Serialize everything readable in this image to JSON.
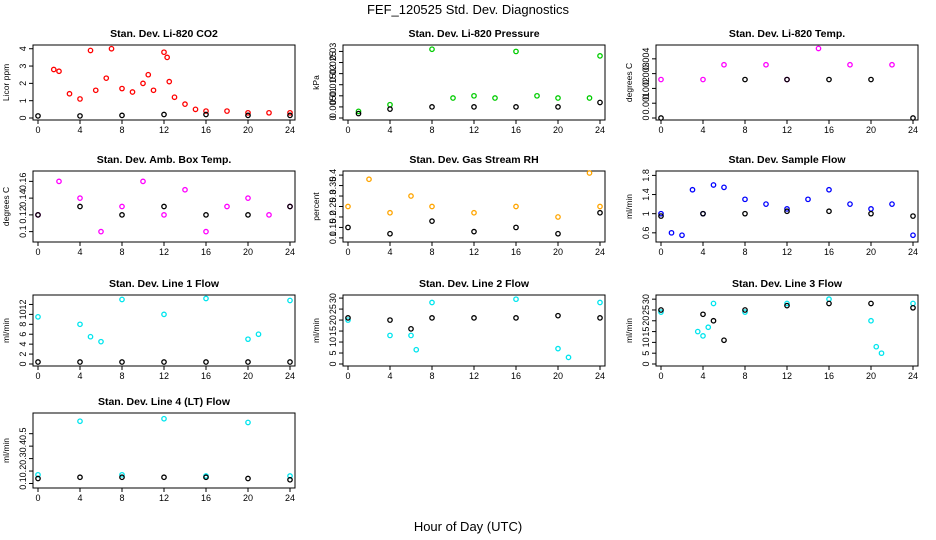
{
  "figure": {
    "title": "FEF_120525  Std. Dev. Diagnostics",
    "xlabel": "Hour of Day (UTC)"
  },
  "colors": {
    "black": "#000000",
    "red": "#ff0000",
    "green": "#00cc00",
    "magenta": "#ff00ff",
    "orange": "#ffa500",
    "blue": "#0000ff",
    "cyan": "#00e5ee"
  },
  "chart_data": [
    {
      "type": "scatter",
      "title": "Stan. Dev. Li-820 CO2",
      "xlabel": "",
      "ylabel": "Licor ppm",
      "xlim": [
        0,
        24
      ],
      "xticks": [
        0,
        4,
        8,
        12,
        16,
        20,
        24
      ],
      "ylim": [
        0,
        4.1
      ],
      "yticks": [
        0,
        1,
        2,
        3,
        4
      ],
      "series": [
        {
          "color": "red",
          "values": [
            [
              1.5,
              2.8
            ],
            [
              2,
              2.7
            ],
            [
              3,
              1.4
            ],
            [
              4,
              1.1
            ],
            [
              5,
              3.9
            ],
            [
              5.5,
              1.6
            ],
            [
              6.5,
              2.3
            ],
            [
              7,
              4.0
            ],
            [
              8,
              1.7
            ],
            [
              9,
              1.5
            ],
            [
              10,
              2.0
            ],
            [
              10.5,
              2.5
            ],
            [
              11,
              1.6
            ],
            [
              12,
              3.8
            ],
            [
              12.3,
              3.5
            ],
            [
              12.5,
              2.1
            ],
            [
              13,
              1.2
            ],
            [
              14,
              0.8
            ],
            [
              15,
              0.5
            ],
            [
              16,
              0.4
            ],
            [
              18,
              0.4
            ],
            [
              20,
              0.3
            ],
            [
              22,
              0.3
            ],
            [
              24,
              0.3
            ]
          ]
        },
        {
          "color": "black",
          "values": [
            [
              0,
              0.12
            ],
            [
              4,
              0.12
            ],
            [
              8,
              0.15
            ],
            [
              12,
              0.2
            ],
            [
              16,
              0.2
            ],
            [
              20,
              0.15
            ],
            [
              24,
              0.15
            ]
          ]
        }
      ]
    },
    {
      "type": "scatter",
      "title": "Stan. Dev. Li-820 Pressure",
      "xlabel": "",
      "ylabel": "kPa",
      "xlim": [
        0,
        24
      ],
      "xticks": [
        0,
        4,
        8,
        12,
        16,
        20,
        24
      ],
      "ylim": [
        0,
        0.032
      ],
      "yticks": [
        0.0,
        0.005,
        0.01,
        0.015,
        0.02,
        0.025,
        0.03
      ],
      "series": [
        {
          "color": "green",
          "values": [
            [
              1,
              0.003
            ],
            [
              4,
              0.006
            ],
            [
              8,
              0.031
            ],
            [
              10,
              0.009
            ],
            [
              12,
              0.01
            ],
            [
              14,
              0.009
            ],
            [
              16,
              0.03
            ],
            [
              18,
              0.01
            ],
            [
              20,
              0.009
            ],
            [
              23,
              0.009
            ],
            [
              24,
              0.028
            ]
          ]
        },
        {
          "color": "black",
          "values": [
            [
              1,
              0.002
            ],
            [
              4,
              0.004
            ],
            [
              8,
              0.005
            ],
            [
              12,
              0.005
            ],
            [
              16,
              0.005
            ],
            [
              20,
              0.005
            ],
            [
              24,
              0.007
            ]
          ]
        }
      ]
    },
    {
      "type": "scatter",
      "title": "Stan. Dev. Li-820 Temp.",
      "xlabel": "",
      "ylabel": "degrees C",
      "xlim": [
        0,
        24
      ],
      "xticks": [
        0,
        4,
        8,
        12,
        16,
        20,
        24
      ],
      "ylim": [
        0,
        0.0048
      ],
      "yticks": [
        0.0,
        0.001,
        0.002,
        0.003,
        0.004
      ],
      "series": [
        {
          "color": "magenta",
          "values": [
            [
              0,
              0.0026
            ],
            [
              4,
              0.0026
            ],
            [
              6,
              0.0036
            ],
            [
              10,
              0.0036
            ],
            [
              15,
              0.0047
            ],
            [
              18,
              0.0036
            ],
            [
              22,
              0.0036
            ],
            [
              12,
              0.0026
            ]
          ]
        },
        {
          "color": "black",
          "values": [
            [
              0,
              0
            ],
            [
              8,
              0.0026
            ],
            [
              12,
              0.0026
            ],
            [
              16,
              0.0026
            ],
            [
              20,
              0.0026
            ],
            [
              24,
              0
            ]
          ]
        }
      ]
    },
    {
      "type": "scatter",
      "title": "Stan. Dev. Amb. Box Temp.",
      "xlabel": "",
      "ylabel": "degrees C",
      "xlim": [
        0,
        24
      ],
      "xticks": [
        0,
        4,
        8,
        12,
        16,
        20,
        24
      ],
      "ylim": [
        0.09,
        0.17
      ],
      "yticks": [
        0.1,
        0.12,
        0.14,
        0.16
      ],
      "series": [
        {
          "color": "magenta",
          "values": [
            [
              0,
              0.12
            ],
            [
              2,
              0.16
            ],
            [
              4,
              0.14
            ],
            [
              6,
              0.1
            ],
            [
              8,
              0.13
            ],
            [
              10,
              0.16
            ],
            [
              12,
              0.12
            ],
            [
              14,
              0.15
            ],
            [
              16,
              0.1
            ],
            [
              18,
              0.13
            ],
            [
              20,
              0.14
            ],
            [
              22,
              0.12
            ],
            [
              24,
              0.13
            ]
          ]
        },
        {
          "color": "black",
          "values": [
            [
              0,
              0.12
            ],
            [
              4,
              0.13
            ],
            [
              8,
              0.12
            ],
            [
              12,
              0.13
            ],
            [
              16,
              0.12
            ],
            [
              20,
              0.12
            ],
            [
              24,
              0.13
            ]
          ]
        }
      ]
    },
    {
      "type": "scatter",
      "title": "Stan. Dev. Gas Stream RH",
      "xlabel": "",
      "ylabel": "percent",
      "xlim": [
        0,
        24
      ],
      "xticks": [
        0,
        4,
        8,
        12,
        16,
        20,
        24
      ],
      "ylim": [
        0.09,
        0.41
      ],
      "yticks": [
        0.1,
        0.15,
        0.2,
        0.25,
        0.3,
        0.35,
        0.4
      ],
      "series": [
        {
          "color": "orange",
          "values": [
            [
              0,
              0.25
            ],
            [
              2,
              0.38
            ],
            [
              4,
              0.22
            ],
            [
              6,
              0.3
            ],
            [
              8,
              0.25
            ],
            [
              12,
              0.22
            ],
            [
              16,
              0.25
            ],
            [
              20,
              0.2
            ],
            [
              23,
              0.41
            ],
            [
              24,
              0.25
            ]
          ]
        },
        {
          "color": "black",
          "values": [
            [
              0,
              0.15
            ],
            [
              4,
              0.12
            ],
            [
              8,
              0.18
            ],
            [
              12,
              0.13
            ],
            [
              16,
              0.15
            ],
            [
              20,
              0.12
            ],
            [
              24,
              0.22
            ]
          ]
        }
      ]
    },
    {
      "type": "scatter",
      "title": "Stan. Dev. Sample Flow",
      "xlabel": "",
      "ylabel": "ml/min",
      "xlim": [
        0,
        24
      ],
      "xticks": [
        0,
        4,
        8,
        12,
        16,
        20,
        24
      ],
      "ylim": [
        0.45,
        1.85
      ],
      "yticks": [
        0.6,
        1.0,
        1.4,
        1.8
      ],
      "series": [
        {
          "color": "blue",
          "values": [
            [
              0,
              1.0
            ],
            [
              1,
              0.6
            ],
            [
              2,
              0.55
            ],
            [
              3,
              1.5
            ],
            [
              4,
              1.0
            ],
            [
              5,
              1.6
            ],
            [
              6,
              1.55
            ],
            [
              8,
              1.3
            ],
            [
              10,
              1.2
            ],
            [
              12,
              1.1
            ],
            [
              14,
              1.3
            ],
            [
              16,
              1.5
            ],
            [
              18,
              1.2
            ],
            [
              20,
              1.1
            ],
            [
              22,
              1.2
            ],
            [
              24,
              0.55
            ]
          ]
        },
        {
          "color": "black",
          "values": [
            [
              0,
              0.95
            ],
            [
              4,
              1.0
            ],
            [
              8,
              1.0
            ],
            [
              12,
              1.05
            ],
            [
              16,
              1.05
            ],
            [
              20,
              1.0
            ],
            [
              24,
              0.95
            ]
          ]
        }
      ]
    },
    {
      "type": "scatter",
      "title": "Stan. Dev. Line 1 Flow",
      "xlabel": "",
      "ylabel": "ml/min",
      "xlim": [
        0,
        24
      ],
      "xticks": [
        0,
        4,
        8,
        12,
        16,
        20,
        24
      ],
      "ylim": [
        0,
        13.5
      ],
      "yticks": [
        0,
        2,
        4,
        6,
        8,
        10,
        12
      ],
      "series": [
        {
          "color": "cyan",
          "values": [
            [
              0,
              9.5
            ],
            [
              4,
              8
            ],
            [
              5,
              5.5
            ],
            [
              6,
              4.5
            ],
            [
              8,
              13
            ],
            [
              12,
              10
            ],
            [
              16,
              13.2
            ],
            [
              20,
              5
            ],
            [
              21,
              6
            ],
            [
              24,
              12.8
            ]
          ]
        },
        {
          "color": "black",
          "values": [
            [
              0,
              0.4
            ],
            [
              4,
              0.4
            ],
            [
              8,
              0.4
            ],
            [
              12,
              0.4
            ],
            [
              16,
              0.4
            ],
            [
              20,
              0.4
            ],
            [
              24,
              0.4
            ]
          ]
        }
      ]
    },
    {
      "type": "scatter",
      "title": "Stan. Dev. Line 2 Flow",
      "xlabel": "",
      "ylabel": "ml/min",
      "xlim": [
        0,
        24
      ],
      "xticks": [
        0,
        4,
        8,
        12,
        16,
        20,
        24
      ],
      "ylim": [
        0,
        30.5
      ],
      "yticks": [
        0,
        5,
        10,
        15,
        20,
        25,
        30
      ],
      "series": [
        {
          "color": "cyan",
          "values": [
            [
              0,
              20
            ],
            [
              4,
              13
            ],
            [
              6,
              13
            ],
            [
              6.5,
              6.5
            ],
            [
              8,
              28
            ],
            [
              16,
              29.5
            ],
            [
              20,
              7
            ],
            [
              21,
              3
            ],
            [
              24,
              28
            ]
          ]
        },
        {
          "color": "black",
          "values": [
            [
              0,
              21
            ],
            [
              4,
              20
            ],
            [
              6,
              16
            ],
            [
              8,
              21
            ],
            [
              12,
              21
            ],
            [
              16,
              21
            ],
            [
              20,
              22
            ],
            [
              24,
              21
            ]
          ]
        }
      ]
    },
    {
      "type": "scatter",
      "title": "Stan. Dev. Line 3 Flow",
      "xlabel": "",
      "ylabel": "ml/min",
      "xlim": [
        0,
        24
      ],
      "xticks": [
        0,
        4,
        8,
        12,
        16,
        20,
        24
      ],
      "ylim": [
        0,
        31
      ],
      "yticks": [
        0,
        5,
        10,
        15,
        20,
        25,
        30
      ],
      "series": [
        {
          "color": "cyan",
          "values": [
            [
              0,
              24
            ],
            [
              3.5,
              15
            ],
            [
              4,
              13
            ],
            [
              4.5,
              17
            ],
            [
              5,
              28
            ],
            [
              8,
              24
            ],
            [
              12,
              28
            ],
            [
              16,
              30
            ],
            [
              20,
              20
            ],
            [
              20.5,
              8
            ],
            [
              21,
              5
            ],
            [
              24,
              28
            ]
          ]
        },
        {
          "color": "black",
          "values": [
            [
              0,
              25
            ],
            [
              4,
              23
            ],
            [
              5,
              20
            ],
            [
              6,
              11
            ],
            [
              8,
              25
            ],
            [
              12,
              27
            ],
            [
              16,
              28
            ],
            [
              20,
              28
            ],
            [
              24,
              26
            ]
          ]
        }
      ]
    },
    {
      "type": "scatter",
      "title": "Stan. Dev. Line 4 (LT) Flow",
      "xlabel": "",
      "ylabel": "ml/min",
      "xlim": [
        0,
        24
      ],
      "xticks": [
        0,
        4,
        8,
        12,
        16,
        20,
        24
      ],
      "ylim": [
        0.08,
        0.65
      ],
      "yticks": [
        0.1,
        0.2,
        0.3,
        0.4,
        0.5
      ],
      "series": [
        {
          "color": "cyan",
          "values": [
            [
              0,
              0.17
            ],
            [
              4,
              0.6
            ],
            [
              8,
              0.17
            ],
            [
              12,
              0.62
            ],
            [
              16,
              0.16
            ],
            [
              20,
              0.59
            ],
            [
              24,
              0.16
            ]
          ]
        },
        {
          "color": "black",
          "values": [
            [
              0,
              0.14
            ],
            [
              4,
              0.15
            ],
            [
              8,
              0.15
            ],
            [
              12,
              0.15
            ],
            [
              16,
              0.15
            ],
            [
              20,
              0.14
            ],
            [
              24,
              0.13
            ]
          ]
        }
      ]
    }
  ]
}
